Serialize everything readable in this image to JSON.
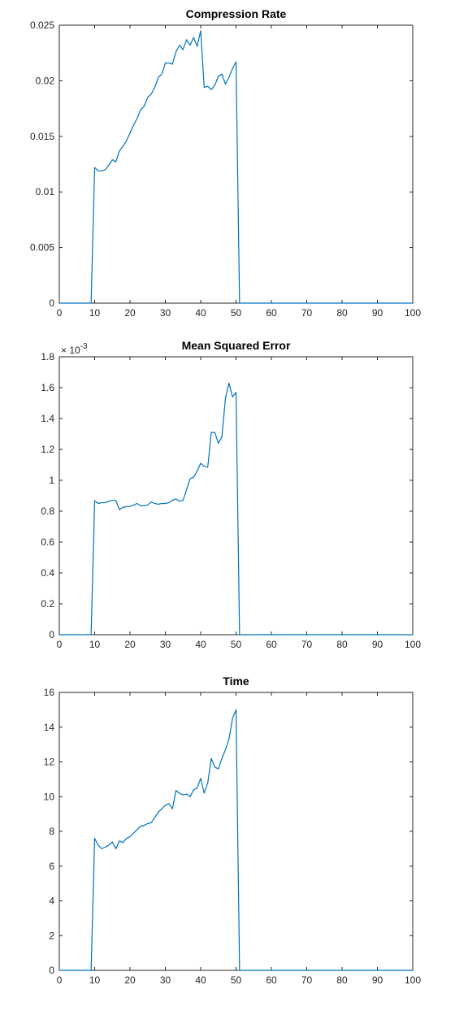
{
  "chart_data": [
    {
      "type": "line",
      "title": "Compression Rate",
      "xlim": [
        0,
        100
      ],
      "ylim": [
        0,
        0.025
      ],
      "x_ticks": [
        "0",
        "10",
        "20",
        "30",
        "40",
        "50",
        "60",
        "70",
        "80",
        "90",
        "100"
      ],
      "y_ticks": [
        "0",
        "0.005",
        "0.01",
        "0.015",
        "0.02",
        "0.025"
      ],
      "y_exponent": "",
      "grid": false,
      "color": "#0072bd",
      "series": [
        {
          "x": [
            0,
            9,
            10,
            11,
            12,
            13,
            14,
            15,
            16,
            17,
            18,
            19,
            20,
            21,
            22,
            23,
            24,
            25,
            26,
            27,
            28,
            29,
            30,
            31,
            32,
            33,
            34,
            35,
            36,
            37,
            38,
            39,
            40,
            41,
            42,
            43,
            44,
            45,
            46,
            47,
            48,
            49,
            50,
            51,
            52,
            100
          ],
          "y": [
            0,
            0,
            0.0122,
            0.0119,
            0.0119,
            0.012,
            0.0124,
            0.0129,
            0.0127,
            0.0137,
            0.0141,
            0.0146,
            0.0153,
            0.016,
            0.0166,
            0.0174,
            0.0177,
            0.0185,
            0.0188,
            0.0194,
            0.0203,
            0.0206,
            0.0216,
            0.0216,
            0.0215,
            0.0226,
            0.0232,
            0.0228,
            0.0237,
            0.0232,
            0.0239,
            0.0231,
            0.0245,
            0.0194,
            0.0195,
            0.0192,
            0.0196,
            0.0204,
            0.0206,
            0.0197,
            0.0203,
            0.0211,
            0.0217,
            0,
            0,
            0
          ]
        }
      ]
    },
    {
      "type": "line",
      "title": "Mean Squared Error",
      "xlim": [
        0,
        100
      ],
      "ylim": [
        0,
        1.8
      ],
      "x_ticks": [
        "0",
        "10",
        "20",
        "30",
        "40",
        "50",
        "60",
        "70",
        "80",
        "90",
        "100"
      ],
      "y_ticks": [
        "0",
        "0.2",
        "0.4",
        "0.6",
        "0.8",
        "1",
        "1.2",
        "1.4",
        "1.6",
        "1.8"
      ],
      "y_exponent": "× 10",
      "y_exponent_power": "-3",
      "grid": false,
      "color": "#0072bd",
      "series": [
        {
          "x": [
            0,
            9,
            10,
            11,
            12,
            13,
            14,
            15,
            16,
            17,
            18,
            19,
            20,
            21,
            22,
            23,
            24,
            25,
            26,
            27,
            28,
            29,
            30,
            31,
            32,
            33,
            34,
            35,
            36,
            37,
            38,
            39,
            40,
            41,
            42,
            43,
            44,
            45,
            46,
            47,
            48,
            49,
            50,
            51,
            52,
            100
          ],
          "y": [
            0,
            0,
            0.868,
            0.85,
            0.855,
            0.855,
            0.865,
            0.87,
            0.87,
            0.81,
            0.825,
            0.83,
            0.83,
            0.84,
            0.85,
            0.835,
            0.835,
            0.84,
            0.86,
            0.85,
            0.845,
            0.85,
            0.85,
            0.855,
            0.87,
            0.88,
            0.865,
            0.87,
            0.94,
            1.01,
            1.02,
            1.06,
            1.11,
            1.09,
            1.085,
            1.31,
            1.31,
            1.24,
            1.28,
            1.53,
            1.63,
            1.54,
            1.57,
            0,
            0,
            0
          ]
        }
      ]
    },
    {
      "type": "line",
      "title": "Time",
      "xlim": [
        0,
        100
      ],
      "ylim": [
        0,
        16
      ],
      "x_ticks": [
        "0",
        "10",
        "20",
        "30",
        "40",
        "50",
        "60",
        "70",
        "80",
        "90",
        "100"
      ],
      "y_ticks": [
        "0",
        "2",
        "4",
        "6",
        "8",
        "10",
        "12",
        "14",
        "16"
      ],
      "y_exponent": "",
      "grid": false,
      "color": "#0072bd",
      "series": [
        {
          "x": [
            0,
            9,
            10,
            11,
            12,
            13,
            14,
            15,
            16,
            17,
            18,
            19,
            20,
            21,
            22,
            23,
            24,
            25,
            26,
            27,
            28,
            29,
            30,
            31,
            32,
            33,
            34,
            35,
            36,
            37,
            38,
            39,
            40,
            41,
            42,
            43,
            44,
            45,
            46,
            47,
            48,
            49,
            50,
            51,
            52,
            100
          ],
          "y": [
            0,
            0,
            7.6,
            7.2,
            7.0,
            7.1,
            7.2,
            7.4,
            7.0,
            7.45,
            7.35,
            7.6,
            7.7,
            7.9,
            8.1,
            8.3,
            8.35,
            8.45,
            8.5,
            8.8,
            9.1,
            9.3,
            9.5,
            9.6,
            9.3,
            10.35,
            10.2,
            10.1,
            10.15,
            10.0,
            10.4,
            10.5,
            11.05,
            10.2,
            10.8,
            12.2,
            11.7,
            11.6,
            12.2,
            12.7,
            13.3,
            14.5,
            15.0,
            0,
            0,
            0
          ]
        }
      ]
    }
  ]
}
